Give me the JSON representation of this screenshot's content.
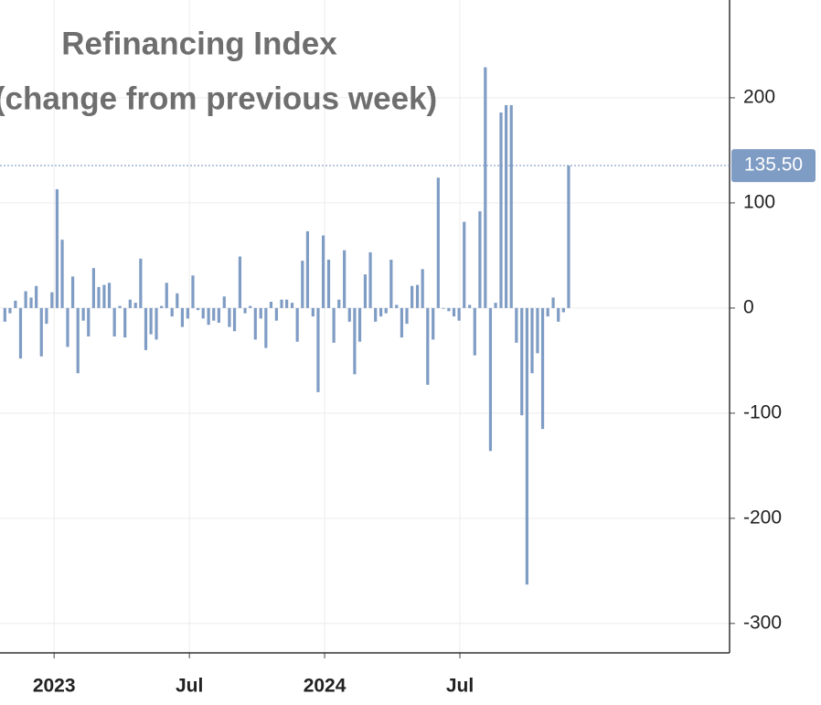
{
  "chart_data": {
    "type": "bar",
    "title": [
      "Refinancing Index",
      "(change from previous week)"
    ],
    "color": "#7f9cc4",
    "grid": true,
    "xlim": [
      2022.8,
      2025.497
    ],
    "xticks": [
      {
        "value": 2023,
        "label": "2023"
      },
      {
        "value": 2023.5,
        "label": "Jul"
      },
      {
        "value": 2024,
        "label": "2024"
      },
      {
        "value": 2024.5,
        "label": "Jul"
      }
    ],
    "ylim": [
      -328,
      293
    ],
    "yticks": [
      200,
      100,
      0,
      -100,
      -200,
      -300
    ],
    "last_value": {
      "value": 135.5,
      "label": "135.50"
    },
    "x": [
      2022.818,
      2022.837,
      2022.857,
      2022.876,
      2022.895,
      2022.915,
      2022.934,
      2022.953,
      2022.972,
      2022.992,
      2023.011,
      2023.03,
      2023.05,
      2023.069,
      2023.088,
      2023.108,
      2023.127,
      2023.146,
      2023.165,
      2023.185,
      2023.204,
      2023.223,
      2023.243,
      2023.262,
      2023.281,
      2023.301,
      2023.32,
      2023.339,
      2023.358,
      2023.378,
      2023.397,
      2023.416,
      2023.436,
      2023.455,
      2023.474,
      2023.494,
      2023.513,
      2023.532,
      2023.551,
      2023.571,
      2023.59,
      2023.609,
      2023.629,
      2023.648,
      2023.667,
      2023.687,
      2023.706,
      2023.725,
      2023.744,
      2023.764,
      2023.783,
      2023.802,
      2023.822,
      2023.841,
      2023.86,
      2023.88,
      2023.899,
      2023.918,
      2023.937,
      2023.957,
      2023.976,
      2023.995,
      2024.015,
      2024.034,
      2024.053,
      2024.073,
      2024.092,
      2024.111,
      2024.13,
      2024.15,
      2024.169,
      2024.188,
      2024.208,
      2024.227,
      2024.246,
      2024.266,
      2024.285,
      2024.304,
      2024.323,
      2024.343,
      2024.362,
      2024.381,
      2024.401,
      2024.42,
      2024.439,
      2024.459,
      2024.478,
      2024.497,
      2024.516,
      2024.536,
      2024.555,
      2024.574,
      2024.594,
      2024.613,
      2024.632,
      2024.652,
      2024.671,
      2024.69,
      2024.709,
      2024.729,
      2024.748,
      2024.767,
      2024.787,
      2024.806,
      2024.825,
      2024.845,
      2024.864,
      2024.883,
      2024.902
    ],
    "values": [
      -13,
      -5,
      7,
      -48,
      16,
      10,
      21,
      -46,
      -15,
      15,
      113,
      65,
      -37,
      30,
      -62,
      -12,
      -27,
      38,
      20,
      22,
      24,
      -27,
      2,
      -28,
      8,
      5,
      47,
      -40,
      -25,
      -30,
      2,
      24,
      -8,
      14,
      -18,
      -10,
      31,
      -2,
      -10,
      -16,
      -12,
      -14,
      11,
      -18,
      -22,
      49,
      -5,
      2,
      -30,
      -10,
      -38,
      6,
      -12,
      8,
      8,
      5,
      -32,
      45,
      73,
      -8,
      -80,
      69,
      46,
      -33,
      8,
      55,
      -13,
      -63,
      -32,
      32,
      53,
      -13,
      -8,
      -5,
      46,
      3,
      -28,
      -15,
      21,
      22,
      37,
      -73,
      -30,
      124,
      0,
      -3,
      -8,
      -12,
      82,
      3,
      -45,
      92,
      229,
      -136,
      5,
      186,
      193,
      193,
      -33,
      -102,
      -263,
      -62,
      -43,
      -115,
      -8,
      10,
      -13,
      -4,
      135.5
    ]
  }
}
